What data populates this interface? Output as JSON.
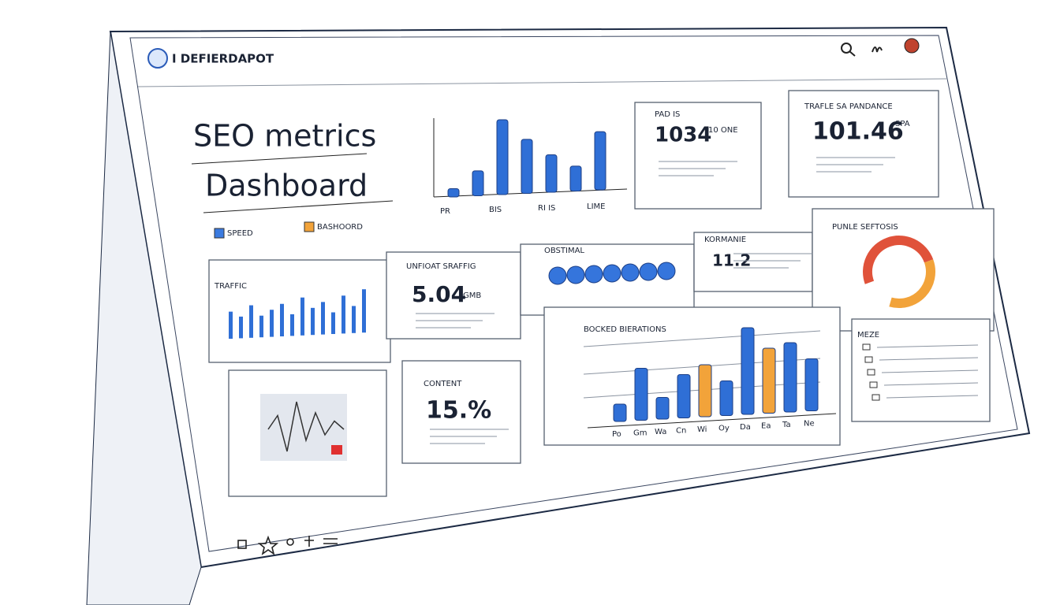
{
  "header": {
    "brand": "I DEFIERDAPOT"
  },
  "title": [
    "SEO metrics",
    "Dashboard"
  ],
  "legend": [
    {
      "label": "SPEED",
      "color": "#3b7be0"
    },
    {
      "label": "BASHOORD",
      "color": "#f2a33a"
    }
  ],
  "top_chart": {
    "values": [
      1,
      3,
      9,
      6.5,
      4.5,
      3,
      7
    ],
    "labels": [
      "PR",
      null,
      "BIS",
      null,
      "RI IS",
      null,
      "LIME"
    ],
    "color": "#2f6fd6"
  },
  "cards": [
    {
      "label": "PAD IS",
      "value": 1034,
      "unit": "10 ONE"
    },
    {
      "label": "TRAFLE SA PANDANCE",
      "value": 101.46,
      "unit": "SPA"
    },
    {
      "label": "UNFIOAT SRAFFIG",
      "value": 5.04,
      "unit": "GMB"
    },
    {
      "label": "KORMANIE",
      "value": 11.2
    },
    {
      "label": "CONTENT",
      "value": "15.%"
    }
  ],
  "traffic": {
    "label": "TRAFFIC",
    "values": [
      5,
      4,
      6,
      4,
      5,
      6,
      4,
      7,
      5,
      6,
      4,
      7,
      5,
      8
    ],
    "color": "#2f6fd6"
  },
  "dots_label": "OBSTIMAL",
  "donut": {
    "label": "PUNLE SEFTOSIS",
    "values": [
      50,
      35
    ],
    "colors": [
      "#e0523a",
      "#f2a33a"
    ]
  },
  "bottom_chart": {
    "title": "BOCKED BIERATIONS",
    "categories": [
      "Po",
      "Gm",
      "Wa",
      "Cn",
      "Wi",
      "Oy",
      "Da",
      "Ea",
      "Ta",
      "Ne"
    ],
    "values": [
      2,
      6,
      2.5,
      5,
      6,
      4,
      10,
      7.5,
      8,
      6
    ],
    "colors": [
      "#2f6fd6",
      "#2f6fd6",
      "#2f6fd6",
      "#2f6fd6",
      "#f2a33a",
      "#2f6fd6",
      "#2f6fd6",
      "#f2a33a",
      "#2f6fd6",
      "#2f6fd6"
    ]
  },
  "menu_label": "MEZE",
  "sparkline": {
    "values": [
      0,
      5,
      -8,
      10,
      -4,
      6,
      -2,
      3,
      0
    ],
    "color": "#333"
  }
}
